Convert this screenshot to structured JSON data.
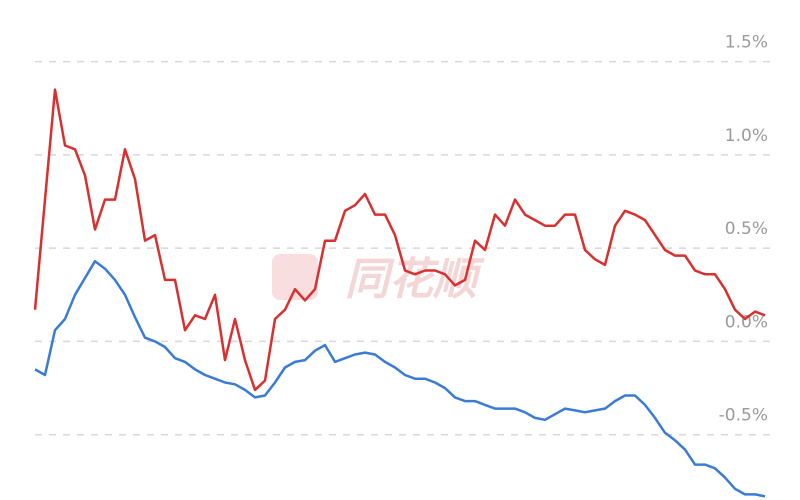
{
  "chart_data": {
    "type": "line",
    "watermark": "同花顺",
    "categories": [
      null,
      null,
      null,
      null,
      null,
      null,
      null,
      null,
      null,
      null,
      null,
      null,
      null,
      null,
      null,
      null,
      null,
      null,
      null,
      null,
      null,
      null,
      null,
      null,
      null,
      null,
      null,
      null,
      null,
      null,
      null,
      null,
      null,
      null,
      null,
      null,
      null,
      null,
      null,
      null,
      null,
      null,
      null,
      null,
      null,
      null,
      null,
      null,
      null,
      null,
      null,
      null,
      null,
      null,
      null,
      null,
      null,
      null,
      null,
      null,
      null,
      null,
      null,
      null,
      null,
      null,
      null,
      null,
      null,
      null,
      null,
      null,
      null,
      null
    ],
    "series": [
      {
        "color": "#d9302f",
        "values": [
          0.17,
          0.76,
          1.35,
          1.05,
          1.03,
          0.89,
          0.6,
          0.76,
          0.76,
          1.03,
          0.87,
          0.54,
          0.57,
          0.33,
          0.33,
          0.06,
          0.14,
          0.12,
          0.25,
          -0.1,
          0.12,
          -0.1,
          -0.26,
          -0.21,
          0.12,
          0.17,
          0.28,
          0.22,
          0.28,
          0.54,
          0.54,
          0.7,
          0.73,
          0.79,
          0.68,
          0.68,
          0.57,
          0.38,
          0.36,
          0.38,
          0.38,
          0.36,
          0.3,
          0.33,
          0.54,
          0.49,
          0.68,
          0.62,
          0.76,
          0.68,
          0.65,
          0.62,
          0.62,
          0.68,
          0.68,
          0.49,
          0.44,
          0.41,
          0.62,
          0.7,
          0.68,
          0.65,
          0.57,
          0.49,
          0.46,
          0.46,
          0.38,
          0.36,
          0.36,
          0.28,
          0.17,
          0.12,
          0.16,
          0.14
        ]
      },
      {
        "color": "#3a7bd5",
        "values": [
          -0.15,
          -0.18,
          0.06,
          0.12,
          0.25,
          0.34,
          0.43,
          0.39,
          0.33,
          0.25,
          0.13,
          0.02,
          0.0,
          -0.03,
          -0.09,
          -0.11,
          -0.15,
          -0.18,
          -0.2,
          -0.22,
          -0.23,
          -0.26,
          -0.3,
          -0.29,
          -0.22,
          -0.14,
          -0.11,
          -0.1,
          -0.05,
          -0.02,
          -0.11,
          -0.09,
          -0.07,
          -0.06,
          -0.07,
          -0.11,
          -0.14,
          -0.18,
          -0.2,
          -0.2,
          -0.22,
          -0.25,
          -0.3,
          -0.32,
          -0.32,
          -0.34,
          -0.36,
          -0.36,
          -0.36,
          -0.38,
          -0.41,
          -0.42,
          -0.39,
          -0.36,
          -0.37,
          -0.38,
          -0.37,
          -0.36,
          -0.32,
          -0.29,
          -0.29,
          -0.34,
          -0.41,
          -0.49,
          -0.53,
          -0.58,
          -0.66,
          -0.66,
          -0.68,
          -0.73,
          -0.79,
          -0.82,
          -0.82,
          -0.83
        ]
      }
    ],
    "ylim": [
      -0.85,
      1.83
    ],
    "yticks": [
      {
        "value": -0.5,
        "label": "-0.5%"
      },
      {
        "value": 0.0,
        "label": "0.0%"
      },
      {
        "value": 0.5,
        "label": "0.5%"
      },
      {
        "value": 1.0,
        "label": "1.0%"
      },
      {
        "value": 1.5,
        "label": "1.5%"
      }
    ],
    "grid": true
  }
}
